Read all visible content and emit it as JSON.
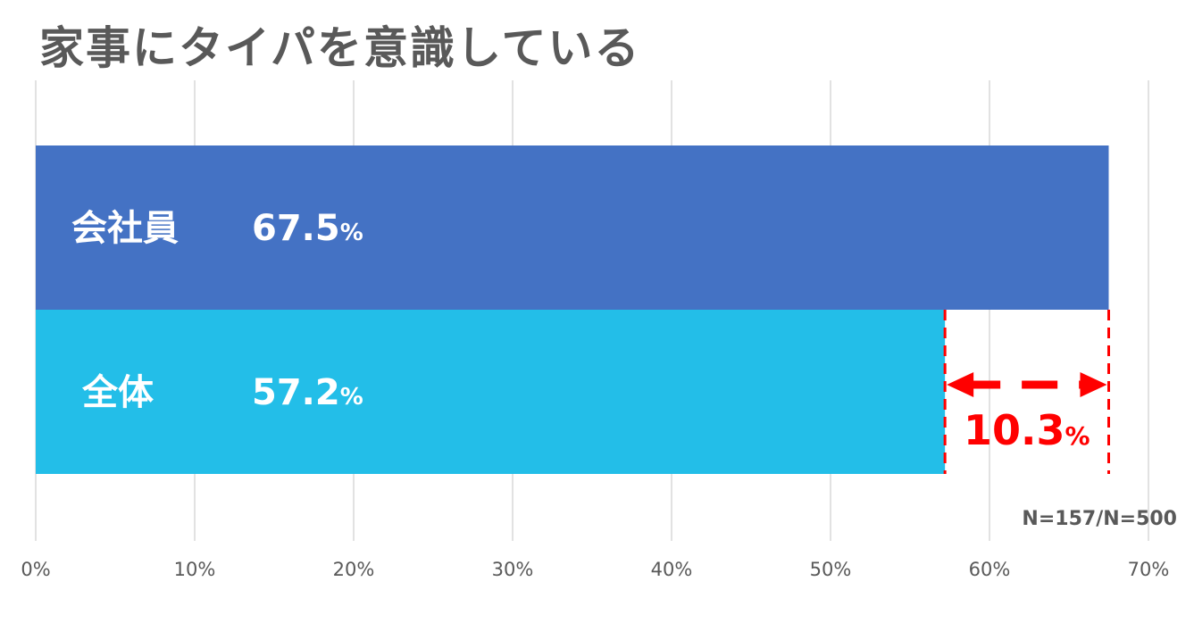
{
  "chart_data": {
    "type": "bar",
    "orientation": "horizontal",
    "title": "家事にタイパを意識している",
    "categories": [
      "会社員",
      "全体"
    ],
    "values": [
      67.5,
      57.2
    ],
    "value_labels": [
      "67.5",
      "57.2"
    ],
    "value_suffix": "%",
    "bar_colors": [
      "#4472c4",
      "#23bee8"
    ],
    "xlim": [
      0,
      70
    ],
    "x_ticks": [
      0,
      10,
      20,
      30,
      40,
      50,
      60,
      70
    ],
    "x_tick_labels": [
      "0%",
      "10%",
      "20%",
      "30%",
      "40%",
      "50%",
      "60%",
      "70%"
    ],
    "grid": true,
    "difference": {
      "value": 10.3,
      "label": "10.3",
      "suffix": "%",
      "color": "#ff0000"
    },
    "note": "N=157/N=500"
  }
}
